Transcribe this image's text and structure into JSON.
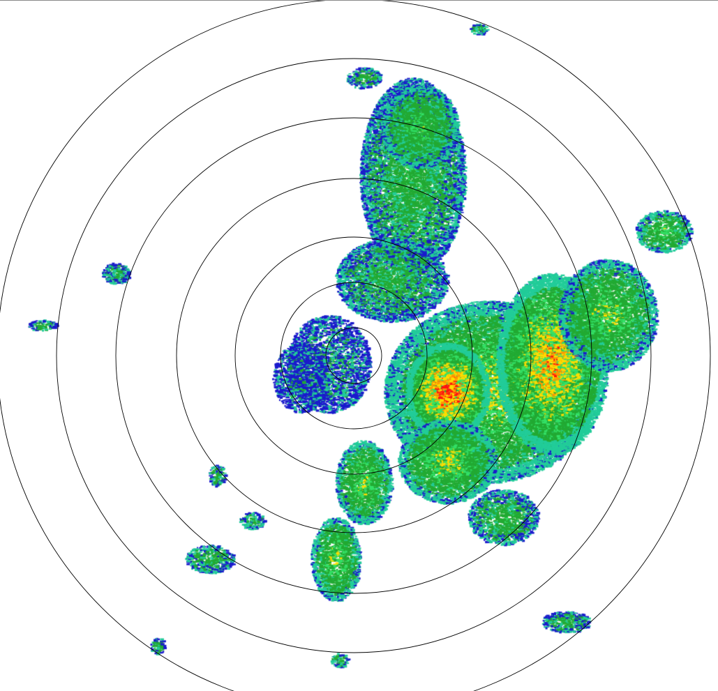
{
  "display": {
    "type": "radar-ppi-reflectivity",
    "range_rings": 7,
    "ring_color": "#000000",
    "background": "#ffffff"
  },
  "color_scale": {
    "weak": "#1a1acc",
    "light": "#22cc99",
    "moderate": "#22aa33",
    "bright": "#33e066",
    "heavy": "#ffdd00",
    "intense": "#ff9900",
    "extreme": "#ff1111"
  }
}
